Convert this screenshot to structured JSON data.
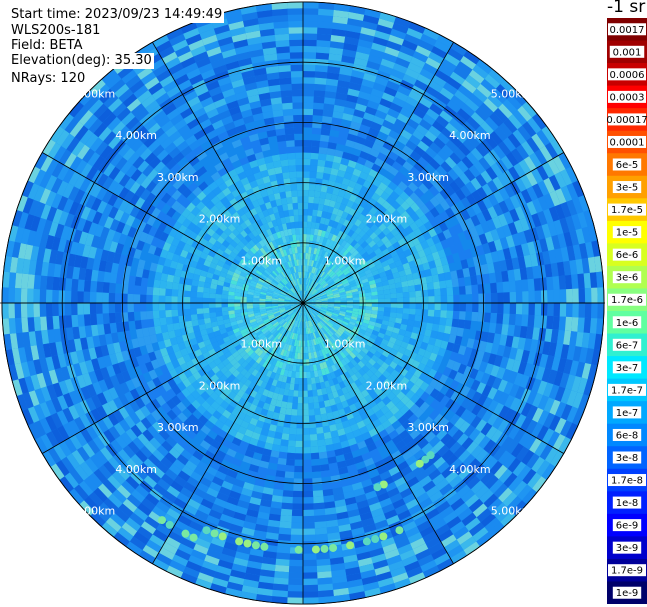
{
  "header": {
    "start_time": "Start time: 2023/09/23 14:49:49",
    "instrument": "WLS200s-181",
    "field": "Field: BETA",
    "elevation": "Elevation(deg): 35.30",
    "nrays": "NRays: 120"
  },
  "colorbar": {
    "units": "-1 sr",
    "labels": [
      "0.0017",
      "0.001",
      "0.0006",
      "0.0003",
      "0.00017",
      "0.0001",
      "6e-5",
      "3e-5",
      "1.7e-5",
      "1e-5",
      "6e-6",
      "3e-6",
      "1.7e-6",
      "1e-6",
      "6e-7",
      "3e-7",
      "1.7e-7",
      "1e-7",
      "6e-8",
      "3e-8",
      "1.7e-8",
      "1e-8",
      "6e-9",
      "3e-9",
      "1.7e-9",
      "1e-9"
    ],
    "colors": [
      "#800000",
      "#a00000",
      "#c80000",
      "#ff0000",
      "#ff2800",
      "#ff5000",
      "#ff7800",
      "#ffa000",
      "#ffc800",
      "#ffff00",
      "#d8ff20",
      "#b0ff50",
      "#88ff80",
      "#60ffa0",
      "#30f0d0",
      "#00e8ff",
      "#00c8ff",
      "#00a8ff",
      "#0088ff",
      "#0064ff",
      "#0040ff",
      "#0020ff",
      "#0000ff",
      "#0000cc",
      "#000099",
      "#00006a"
    ]
  },
  "chart_data": {
    "type": "ppi_polar",
    "field": "BETA",
    "units": "sr-1",
    "elevation_deg": 35.3,
    "n_rays": 120,
    "range_rings_km": [
      1,
      2,
      3,
      4,
      5
    ],
    "ring_labels": [
      "1.00km",
      "2.00km",
      "3.00km",
      "4.00km",
      "5.00km"
    ],
    "spoke_azimuths_deg": [
      0,
      30,
      60,
      90,
      120,
      150,
      180,
      210,
      240,
      270,
      300,
      330
    ],
    "max_range_km": 5.0,
    "color_scale": "log",
    "value_range": [
      1e-09,
      0.0017
    ]
  }
}
